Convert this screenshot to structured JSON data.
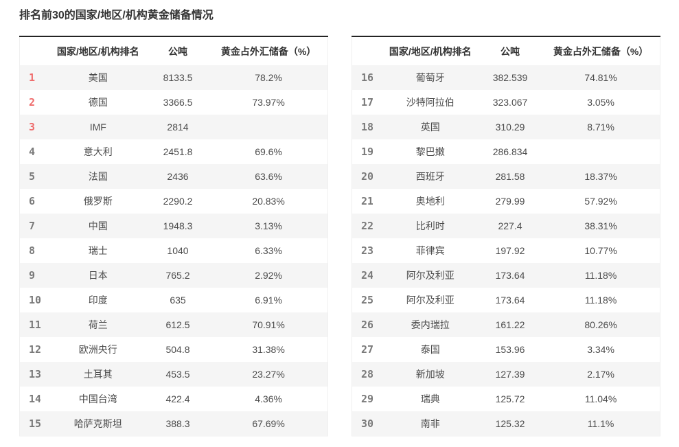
{
  "title": "排名前30的国家/地区/机构黄金储备情况",
  "table_header": {
    "rank": "",
    "name": "国家/地区/机构排名",
    "tons": "公吨",
    "pct": "黄金占外汇储备（%）"
  },
  "colors": {
    "top_rank_red": "#ef6c6c",
    "rank_gray": "#7a7a7a",
    "row_stripe": "#f5f5f5",
    "table_top_border": "#242424",
    "text_dark": "#333333"
  },
  "chart_data": {
    "type": "table",
    "title": "排名前30的国家/地区/机构黄金储备情况",
    "columns": [
      "排名",
      "国家/地区/机构排名",
      "公吨",
      "黄金占外汇储备（%）"
    ],
    "left_rows": [
      [
        "1",
        "美国",
        "8133.5",
        "78.2%"
      ],
      [
        "2",
        "德国",
        "3366.5",
        "73.97%"
      ],
      [
        "3",
        "IMF",
        "2814",
        ""
      ],
      [
        "4",
        "意大利",
        "2451.8",
        "69.6%"
      ],
      [
        "5",
        "法国",
        "2436",
        "63.6%"
      ],
      [
        "6",
        "俄罗斯",
        "2290.2",
        "20.83%"
      ],
      [
        "7",
        "中国",
        "1948.3",
        "3.13%"
      ],
      [
        "8",
        "瑞士",
        "1040",
        "6.33%"
      ],
      [
        "9",
        "日本",
        "765.2",
        "2.92%"
      ],
      [
        "10",
        "印度",
        "635",
        "6.91%"
      ],
      [
        "11",
        "荷兰",
        "612.5",
        "70.91%"
      ],
      [
        "12",
        "欧洲央行",
        "504.8",
        "31.38%"
      ],
      [
        "13",
        "土耳其",
        "453.5",
        "23.27%"
      ],
      [
        "14",
        "中国台湾",
        "422.4",
        "4.36%"
      ],
      [
        "15",
        "哈萨克斯坦",
        "388.3",
        "67.69%"
      ]
    ],
    "right_rows": [
      [
        "16",
        "葡萄牙",
        "382.539",
        "74.81%"
      ],
      [
        "17",
        "沙特阿拉伯",
        "323.067",
        "3.05%"
      ],
      [
        "18",
        "英国",
        "310.29",
        "8.71%"
      ],
      [
        "19",
        "黎巴嫩",
        "286.834",
        ""
      ],
      [
        "20",
        "西班牙",
        "281.58",
        "18.37%"
      ],
      [
        "21",
        "奥地利",
        "279.99",
        "57.92%"
      ],
      [
        "22",
        "比利时",
        "227.4",
        "38.31%"
      ],
      [
        "23",
        "菲律宾",
        "197.92",
        "10.77%"
      ],
      [
        "24",
        "阿尔及利亚",
        "173.64",
        "11.18%"
      ],
      [
        "25",
        "阿尔及利亚",
        "173.64",
        "11.18%"
      ],
      [
        "26",
        "委内瑞拉",
        "161.22",
        "80.26%"
      ],
      [
        "27",
        "泰国",
        "153.96",
        "3.34%"
      ],
      [
        "28",
        "新加坡",
        "127.39",
        "2.17%"
      ],
      [
        "29",
        "瑞典",
        "125.72",
        "11.04%"
      ],
      [
        "30",
        "南非",
        "125.32",
        "11.1%"
      ]
    ]
  }
}
